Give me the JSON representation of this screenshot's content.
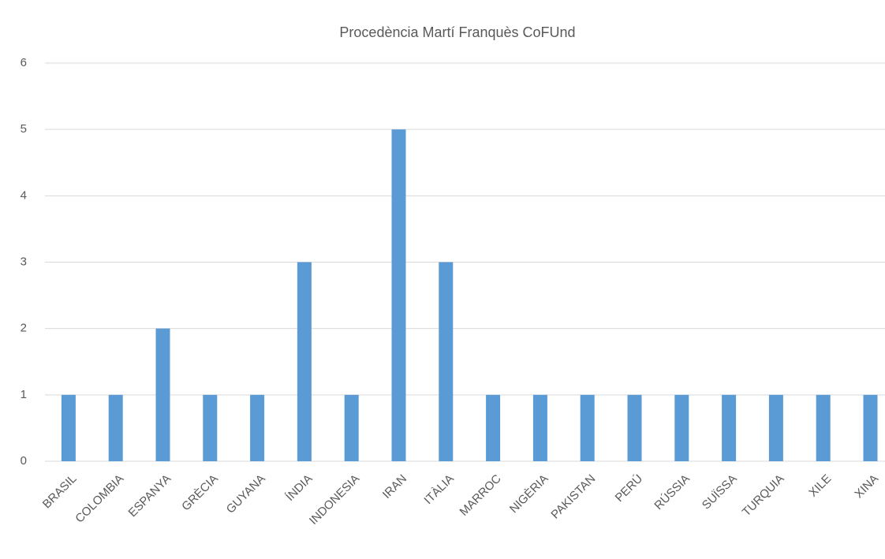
{
  "chart_data": {
    "type": "bar",
    "title": "Procedència Martí Franquès CoFUnd",
    "categories": [
      "BRASIL",
      "COLOMBIA",
      "ESPANYA",
      "GRÈCIA",
      "GUYANA",
      "ÍNDIA",
      "INDONESIA",
      "IRAN",
      "ITÀLIA",
      "MARROC",
      "NIGÈRIA",
      "PAKISTAN",
      "PERÚ",
      "RÚSSIA",
      "SUÏSSA",
      "TURQUIA",
      "XILE",
      "XINA"
    ],
    "values": [
      1,
      1,
      2,
      1,
      1,
      3,
      1,
      5,
      3,
      1,
      1,
      1,
      1,
      1,
      1,
      1,
      1,
      1
    ],
    "color": "#5b9bd5",
    "ylim": [
      0,
      6
    ],
    "yticks": [
      0,
      1,
      2,
      3,
      4,
      5,
      6
    ],
    "grid": true
  }
}
